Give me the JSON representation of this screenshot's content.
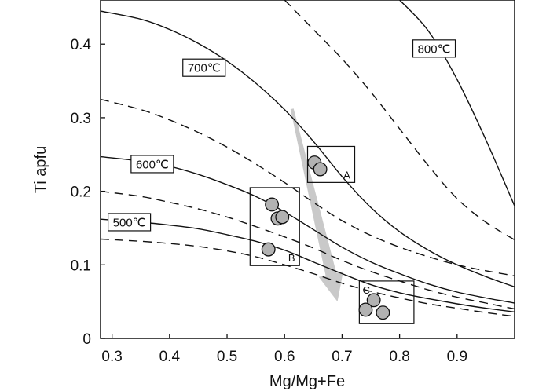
{
  "chart_data": {
    "type": "line",
    "title": "",
    "xlabel": "Mg/Mg+Fe",
    "ylabel": "Ti apfu",
    "xlim": [
      0.28,
      1.0
    ],
    "ylim": [
      0,
      0.46
    ],
    "x_ticks": [
      0.3,
      0.4,
      0.5,
      0.6,
      0.7,
      0.8,
      0.9
    ],
    "x_tick_labels": [
      "0.3",
      "0.4",
      "0.5",
      "0.6",
      "0.7",
      "0.8",
      "0.9"
    ],
    "y_ticks": [
      0,
      0.1,
      0.2,
      0.3,
      0.4
    ],
    "y_tick_labels": [
      "0",
      "0.1",
      "0.2",
      "0.3",
      "0.4"
    ],
    "grid": false,
    "isotherms": [
      {
        "label": "500℃",
        "style": "solid",
        "label_at": [
          0.33,
          0.158
        ],
        "points": [
          [
            0.28,
            0.162
          ],
          [
            0.35,
            0.158
          ],
          [
            0.4,
            0.154
          ],
          [
            0.45,
            0.149
          ],
          [
            0.5,
            0.141
          ],
          [
            0.55,
            0.132
          ],
          [
            0.6,
            0.12
          ],
          [
            0.65,
            0.104
          ],
          [
            0.7,
            0.088
          ],
          [
            0.75,
            0.073
          ],
          [
            0.8,
            0.062
          ],
          [
            0.85,
            0.054
          ],
          [
            0.9,
            0.047
          ],
          [
            0.95,
            0.041
          ],
          [
            1.0,
            0.036
          ]
        ]
      },
      {
        "label": "",
        "style": "dashed",
        "points": [
          [
            0.28,
            0.135
          ],
          [
            0.35,
            0.132
          ],
          [
            0.4,
            0.129
          ],
          [
            0.45,
            0.125
          ],
          [
            0.5,
            0.119
          ],
          [
            0.55,
            0.111
          ],
          [
            0.6,
            0.1
          ],
          [
            0.65,
            0.088
          ],
          [
            0.7,
            0.075
          ],
          [
            0.75,
            0.064
          ],
          [
            0.8,
            0.055
          ],
          [
            0.85,
            0.047
          ],
          [
            0.9,
            0.041
          ],
          [
            0.95,
            0.035
          ],
          [
            1.0,
            0.03
          ]
        ]
      },
      {
        "label": "600℃",
        "style": "solid",
        "label_at": [
          0.37,
          0.237
        ],
        "points": [
          [
            0.28,
            0.247
          ],
          [
            0.35,
            0.241
          ],
          [
            0.4,
            0.234
          ],
          [
            0.45,
            0.223
          ],
          [
            0.5,
            0.209
          ],
          [
            0.55,
            0.193
          ],
          [
            0.6,
            0.172
          ],
          [
            0.65,
            0.148
          ],
          [
            0.7,
            0.124
          ],
          [
            0.75,
            0.104
          ],
          [
            0.8,
            0.088
          ],
          [
            0.85,
            0.074
          ],
          [
            0.9,
            0.063
          ],
          [
            0.95,
            0.055
          ],
          [
            1.0,
            0.048
          ]
        ]
      },
      {
        "label": "",
        "style": "dashed",
        "points": [
          [
            0.28,
            0.2
          ],
          [
            0.35,
            0.193
          ],
          [
            0.4,
            0.185
          ],
          [
            0.45,
            0.176
          ],
          [
            0.5,
            0.165
          ],
          [
            0.55,
            0.152
          ],
          [
            0.6,
            0.138
          ],
          [
            0.65,
            0.123
          ],
          [
            0.7,
            0.106
          ],
          [
            0.75,
            0.091
          ],
          [
            0.8,
            0.078
          ],
          [
            0.85,
            0.066
          ],
          [
            0.9,
            0.056
          ],
          [
            0.95,
            0.048
          ],
          [
            1.0,
            0.04
          ]
        ]
      },
      {
        "label": "700℃",
        "style": "solid",
        "label_at": [
          0.46,
          0.368
        ],
        "points": [
          [
            0.28,
            0.445
          ],
          [
            0.35,
            0.434
          ],
          [
            0.4,
            0.42
          ],
          [
            0.45,
            0.401
          ],
          [
            0.5,
            0.377
          ],
          [
            0.55,
            0.347
          ],
          [
            0.6,
            0.311
          ],
          [
            0.65,
            0.268
          ],
          [
            0.7,
            0.22
          ],
          [
            0.75,
            0.178
          ],
          [
            0.8,
            0.145
          ],
          [
            0.85,
            0.12
          ],
          [
            0.9,
            0.1
          ],
          [
            0.95,
            0.084
          ],
          [
            1.0,
            0.07
          ]
        ]
      },
      {
        "label": "",
        "style": "dashed",
        "points": [
          [
            0.28,
            0.325
          ],
          [
            0.35,
            0.311
          ],
          [
            0.4,
            0.297
          ],
          [
            0.45,
            0.28
          ],
          [
            0.5,
            0.26
          ],
          [
            0.55,
            0.237
          ],
          [
            0.6,
            0.212
          ],
          [
            0.65,
            0.185
          ],
          [
            0.7,
            0.16
          ],
          [
            0.75,
            0.14
          ],
          [
            0.8,
            0.124
          ],
          [
            0.85,
            0.111
          ],
          [
            0.9,
            0.1
          ],
          [
            0.95,
            0.092
          ],
          [
            1.0,
            0.085
          ]
        ]
      },
      {
        "label": "",
        "style": "dashed",
        "points": [
          [
            0.6,
            0.46
          ],
          [
            0.65,
            0.42
          ],
          [
            0.7,
            0.38
          ],
          [
            0.75,
            0.335
          ],
          [
            0.8,
            0.285
          ],
          [
            0.85,
            0.235
          ],
          [
            0.9,
            0.19
          ],
          [
            0.95,
            0.158
          ],
          [
            1.0,
            0.134
          ]
        ]
      },
      {
        "label": "800℃",
        "style": "solid",
        "label_at": [
          0.86,
          0.394
        ],
        "points": [
          [
            0.8,
            0.46
          ],
          [
            0.85,
            0.418
          ],
          [
            0.9,
            0.352
          ],
          [
            0.95,
            0.27
          ],
          [
            1.0,
            0.18
          ]
        ]
      }
    ],
    "groups": [
      {
        "label": "A",
        "box": {
          "x": [
            0.64,
            0.722
          ],
          "y": [
            0.212,
            0.261
          ]
        },
        "points": [
          [
            0.652,
            0.239
          ],
          [
            0.662,
            0.23
          ]
        ]
      },
      {
        "label": "B",
        "box": {
          "x": [
            0.54,
            0.626
          ],
          "y": [
            0.099,
            0.205
          ]
        },
        "points": [
          [
            0.578,
            0.182
          ],
          [
            0.588,
            0.163
          ],
          [
            0.596,
            0.165
          ],
          [
            0.572,
            0.121
          ]
        ]
      },
      {
        "label": "C",
        "box": {
          "x": [
            0.73,
            0.825
          ],
          "y": [
            0.02,
            0.078
          ]
        },
        "points": [
          [
            0.755,
            0.052
          ],
          [
            0.771,
            0.035
          ],
          [
            0.741,
            0.039
          ]
        ]
      }
    ],
    "trend_arrow": {
      "x": [
        0.613,
        0.692
      ],
      "y": [
        0.312,
        0.05
      ]
    },
    "colors": {
      "marker_fill": "#b2b2b2",
      "arrow": "#c9c9c9",
      "line": "#111111"
    }
  }
}
